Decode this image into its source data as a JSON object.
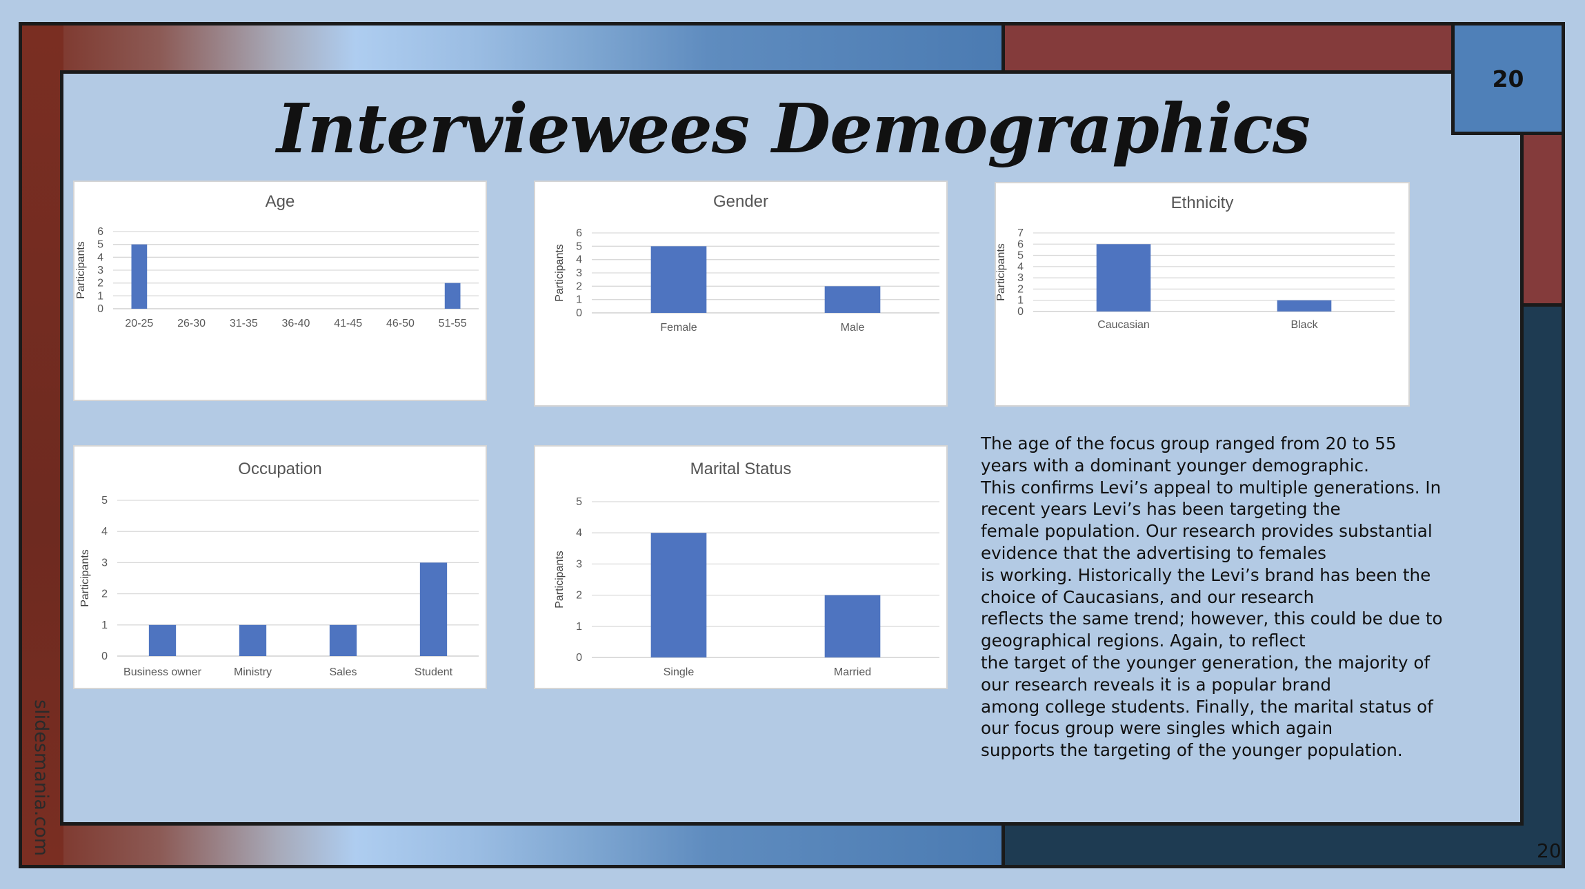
{
  "slide": {
    "title": "Interviewees Demographics",
    "page_number": "20",
    "page_number_footer": "20",
    "watermark": "slidesmania.com"
  },
  "colors": {
    "background": "#b3cae4",
    "bar": "#4e74c0",
    "frame_red": "#843b3b",
    "frame_navy": "#1e3b52",
    "page_box": "#4f80b8"
  },
  "description_lines": [
    "The age of the focus group ranged from 20 to 55",
    "years with a dominant younger demographic.",
    "This confirms Levi’s appeal to multiple generations. In",
    "recent years Levi’s has been targeting the",
    "female population. Our research provides substantial",
    "evidence that the advertising to females",
    "is working. Historically the Levi’s brand has been the",
    "choice of Caucasians, and our research",
    "reflects the same trend; however, this could be due to",
    "geographical regions. Again, to reflect",
    "the target of the younger generation, the majority of",
    "our research reveals it is a popular brand",
    "among college students. Finally, the marital status of",
    "our focus group were singles which again",
    "supports the targeting of the younger population."
  ],
  "chart_data": [
    {
      "id": "age",
      "type": "bar",
      "title": "Age",
      "ylabel": "Participants",
      "categories": [
        "20-25",
        "26-30",
        "31-35",
        "36-40",
        "41-45",
        "46-50",
        "51-55"
      ],
      "values": [
        5,
        0,
        0,
        0,
        0,
        0,
        2
      ],
      "ylim": [
        0,
        6
      ],
      "yticks": [
        "0",
        "1",
        "2",
        "3",
        "4",
        "5",
        "6"
      ],
      "grid": true,
      "legend": "none"
    },
    {
      "id": "gender",
      "type": "bar",
      "title": "Gender",
      "ylabel": "Participants",
      "categories": [
        "Female",
        "Male"
      ],
      "values": [
        5,
        2
      ],
      "ylim": [
        0,
        6
      ],
      "yticks": [
        "0",
        "1",
        "2",
        "3",
        "4",
        "5",
        "6"
      ],
      "grid": true,
      "legend": "none"
    },
    {
      "id": "ethnicity",
      "type": "bar",
      "title": "Ethnicity",
      "ylabel": "Participants",
      "categories": [
        "Caucasian",
        "Black"
      ],
      "values": [
        6,
        1
      ],
      "ylim": [
        0,
        7
      ],
      "yticks": [
        "0",
        "1",
        "2",
        "3",
        "4",
        "5",
        "6",
        "7"
      ],
      "grid": true,
      "legend": "none"
    },
    {
      "id": "occupation",
      "type": "bar",
      "title": "Occupation",
      "ylabel": "Participants",
      "categories": [
        "Business owner",
        "Ministry",
        "Sales",
        "Student"
      ],
      "values": [
        1,
        1,
        1,
        3
      ],
      "ylim": [
        0,
        5
      ],
      "yticks": [
        "0",
        "1",
        "2",
        "3",
        "4",
        "5"
      ],
      "grid": true,
      "legend": "none"
    },
    {
      "id": "marital",
      "type": "bar",
      "title": "Marital Status",
      "ylabel": "Participants",
      "categories": [
        "Single",
        "Married"
      ],
      "values": [
        4,
        2
      ],
      "ylim": [
        0,
        5
      ],
      "yticks": [
        "0",
        "1",
        "2",
        "3",
        "4",
        "5"
      ],
      "grid": true,
      "legend": "none"
    }
  ]
}
